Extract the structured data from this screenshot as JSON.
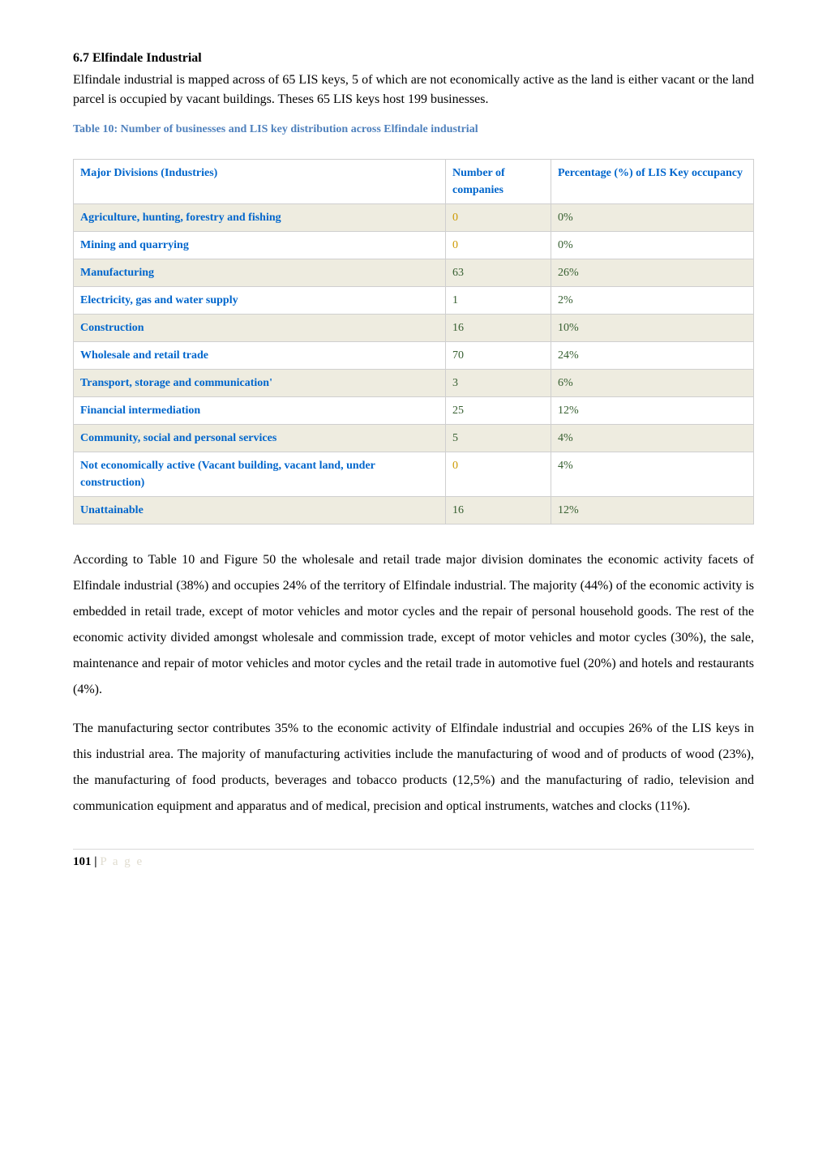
{
  "section": {
    "heading": "6.7 Elfindale Industrial",
    "intro": "Elfindale industrial is mapped across of 65 LIS keys, 5 of which are not economically active as the land is either vacant or the land parcel is occupied by vacant buildings. Theses 65 LIS keys host 199 businesses."
  },
  "table": {
    "caption": "Table 10: Number of businesses and LIS key distribution across Elfindale industrial",
    "caption_color": "#4f81bd",
    "header_text_color": "#0066cc",
    "border_color": "#cfcfcf",
    "shade_color": "#eeece0",
    "columns": [
      {
        "label": "Major Divisions (Industries)"
      },
      {
        "label": "Number of companies"
      },
      {
        "label": "Percentage (%) of LIS Key occupancy"
      }
    ],
    "rows": [
      {
        "division": "Agriculture, hunting, forestry and fishing",
        "num": "0",
        "pct": "0%",
        "shaded": true,
        "div_color": "#0066cc",
        "num_color": "#cc9900",
        "pct_color": "#365f30"
      },
      {
        "division": "Mining and quarrying",
        "num": "0",
        "pct": "0%",
        "shaded": false,
        "div_color": "#0066cc",
        "num_color": "#cc9900",
        "pct_color": "#365f30"
      },
      {
        "division": "Manufacturing",
        "num": "63",
        "pct": "26%",
        "shaded": true,
        "div_color": "#0066cc",
        "num_color": "#365f30",
        "pct_color": "#365f30"
      },
      {
        "division": "Electricity, gas and water supply",
        "num": "1",
        "pct": "2%",
        "shaded": false,
        "div_color": "#0066cc",
        "num_color": "#365f30",
        "pct_color": "#365f30"
      },
      {
        "division": "Construction",
        "num": "16",
        "pct": "10%",
        "shaded": true,
        "div_color": "#0066cc",
        "num_color": "#365f30",
        "pct_color": "#365f30"
      },
      {
        "division": "Wholesale and retail trade",
        "num": "70",
        "pct": "24%",
        "shaded": false,
        "div_color": "#0066cc",
        "num_color": "#365f30",
        "pct_color": "#365f30"
      },
      {
        "division": "Transport, storage and communication'",
        "num": "3",
        "pct": "6%",
        "shaded": true,
        "div_color": "#0066cc",
        "num_color": "#365f30",
        "pct_color": "#365f30"
      },
      {
        "division": "Financial intermediation",
        "num": "25",
        "pct": "12%",
        "shaded": false,
        "div_color": "#0066cc",
        "num_color": "#365f30",
        "pct_color": "#365f30"
      },
      {
        "division": "Community, social and personal services",
        "num": "5",
        "pct": "4%",
        "shaded": true,
        "div_color": "#0066cc",
        "num_color": "#365f30",
        "pct_color": "#365f30"
      },
      {
        "division": "Not economically active (Vacant building, vacant land, under construction)",
        "num": "0",
        "pct": "4%",
        "shaded": false,
        "div_color": "#0066cc",
        "num_color": "#cc9900",
        "pct_color": "#365f30"
      },
      {
        "division": "Unattainable",
        "num": "16",
        "pct": "12%",
        "shaded": true,
        "div_color": "#0066cc",
        "num_color": "#365f30",
        "pct_color": "#365f30"
      }
    ]
  },
  "paragraphs": {
    "p1": "According to Table 10 and Figure 50 the wholesale and retail trade major division dominates the economic activity facets of Elfindale industrial (38%) and occupies 24% of the territory of Elfindale industrial. The majority (44%) of the economic activity is embedded in retail trade, except of motor vehicles and motor cycles and the repair of personal household goods. The rest of the economic activity divided amongst wholesale and commission trade, except of motor vehicles and motor cycles (30%), the sale, maintenance and repair of motor vehicles and motor cycles and the retail trade in automotive fuel (20%) and hotels and restaurants (4%).",
    "p2": "The manufacturing sector contributes 35% to the economic activity of Elfindale industrial and occupies 26% of the LIS keys in this industrial area. The majority of manufacturing activities include the manufacturing of wood and of products of wood (23%), the manufacturing of food products, beverages and tobacco products (12,5%) and the manufacturing of radio, television and communication equipment and apparatus and of medical, precision and optical instruments, watches and clocks (11%)."
  },
  "footer": {
    "page_number": "101",
    "separator": " | ",
    "page_label": "P a g e"
  }
}
